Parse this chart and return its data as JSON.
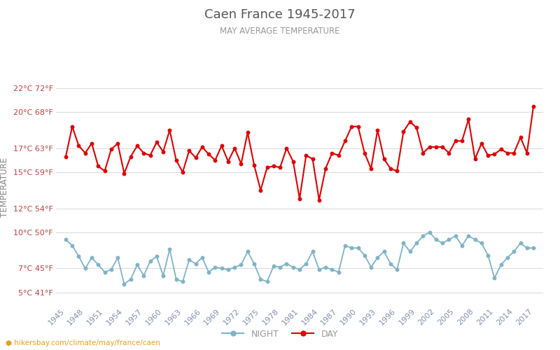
{
  "title": "Caen France 1945-2017",
  "subtitle": "MAY AVERAGE TEMPERATURE",
  "ylabel": "TEMPERATURE",
  "xlabel_url": "hikersbay.com/climate/may/france/caen",
  "years": [
    1945,
    1946,
    1947,
    1948,
    1949,
    1950,
    1951,
    1952,
    1953,
    1954,
    1955,
    1956,
    1957,
    1958,
    1959,
    1960,
    1961,
    1962,
    1963,
    1964,
    1965,
    1966,
    1967,
    1968,
    1969,
    1970,
    1971,
    1972,
    1973,
    1974,
    1975,
    1976,
    1977,
    1978,
    1979,
    1980,
    1981,
    1982,
    1983,
    1984,
    1985,
    1986,
    1987,
    1988,
    1989,
    1990,
    1991,
    1992,
    1993,
    1994,
    1995,
    1996,
    1997,
    1998,
    1999,
    2000,
    2001,
    2002,
    2003,
    2004,
    2005,
    2006,
    2007,
    2008,
    2009,
    2010,
    2011,
    2012,
    2013,
    2014,
    2015,
    2016,
    2017
  ],
  "day": [
    16.3,
    18.8,
    17.2,
    16.6,
    17.4,
    15.5,
    15.1,
    16.9,
    17.4,
    14.9,
    16.3,
    17.2,
    16.6,
    16.4,
    17.5,
    16.7,
    18.5,
    16.0,
    15.0,
    16.8,
    16.2,
    17.1,
    16.5,
    16.0,
    17.2,
    15.9,
    17.0,
    15.7,
    18.3,
    15.6,
    13.5,
    15.4,
    15.5,
    15.4,
    17.0,
    15.9,
    12.8,
    16.4,
    16.1,
    12.7,
    15.3,
    16.6,
    16.4,
    17.6,
    18.8,
    18.8,
    16.6,
    15.3,
    18.5,
    16.1,
    15.3,
    15.1,
    18.4,
    19.2,
    18.7,
    16.6,
    17.1,
    17.1,
    17.1,
    16.6,
    17.6,
    17.6,
    19.4,
    16.1,
    17.4,
    16.4,
    16.5,
    16.9,
    16.6,
    16.6,
    17.9,
    16.6,
    20.5
  ],
  "night": [
    9.4,
    8.9,
    8.0,
    7.0,
    7.9,
    7.3,
    6.7,
    6.9,
    7.9,
    5.7,
    6.1,
    7.3,
    6.4,
    7.6,
    8.0,
    6.4,
    8.6,
    6.1,
    5.9,
    7.7,
    7.4,
    7.9,
    6.7,
    7.1,
    7.0,
    6.9,
    7.1,
    7.3,
    8.4,
    7.4,
    6.1,
    5.9,
    7.2,
    7.1,
    7.4,
    7.1,
    6.9,
    7.4,
    8.4,
    6.9,
    7.1,
    6.9,
    6.7,
    8.9,
    8.7,
    8.7,
    8.1,
    7.1,
    7.9,
    8.4,
    7.4,
    6.9,
    9.1,
    8.4,
    9.1,
    9.7,
    10.0,
    9.4,
    9.1,
    9.4,
    9.7,
    8.9,
    9.7,
    9.4,
    9.1,
    8.1,
    6.2,
    7.3,
    7.9,
    8.4,
    9.1,
    8.7,
    8.7
  ],
  "day_color": "#e00000",
  "night_color": "#7fb3c8",
  "background_color": "#ffffff",
  "grid_color": "#dddddd",
  "title_color": "#555555",
  "subtitle_color": "#999999",
  "ylabel_color": "#888888",
  "tick_color": "#c04040",
  "axis_label_color": "#8090b0",
  "yticks_celsius": [
    5,
    7,
    10,
    12,
    15,
    17,
    20,
    22
  ],
  "yticks_fahrenheit": [
    41,
    45,
    50,
    54,
    59,
    63,
    68,
    72
  ],
  "ylim": [
    4.0,
    23.5
  ],
  "xlim_left": 1943.5,
  "xlim_right": 2018.5,
  "xtick_years": [
    1945,
    1948,
    1951,
    1954,
    1957,
    1960,
    1963,
    1966,
    1969,
    1972,
    1975,
    1978,
    1981,
    1984,
    1987,
    1990,
    1993,
    1996,
    1999,
    2002,
    2005,
    2008,
    2011,
    2014,
    2017
  ],
  "legend_night_label": "NIGHT",
  "legend_day_label": "DAY",
  "figsize": [
    8.0,
    5.0
  ],
  "dpi": 100
}
